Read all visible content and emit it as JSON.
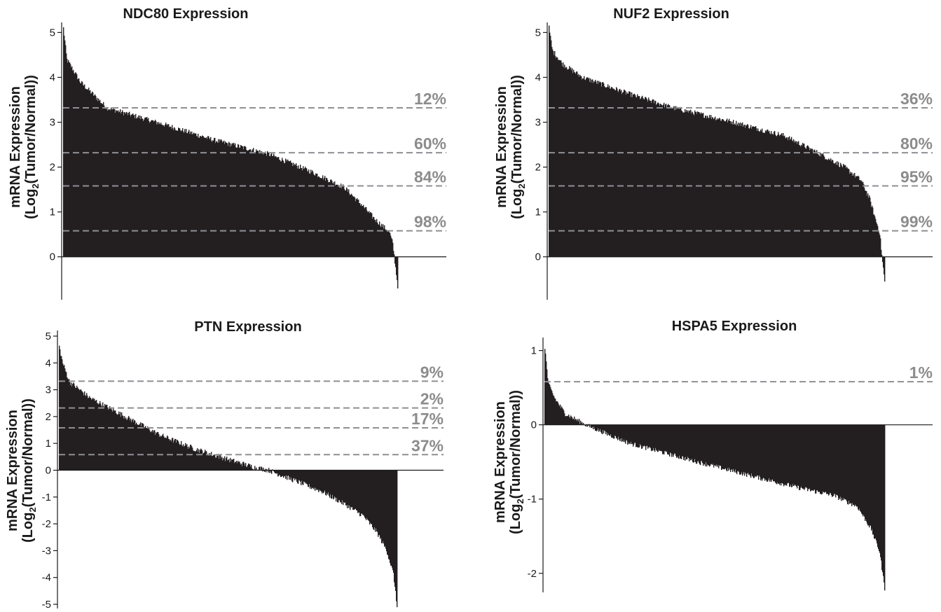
{
  "chart_data": [
    {
      "type": "bar",
      "title": "NDC80 Expression",
      "ylabel": "mRNA Expression",
      "ylabel_line2_prefix": "(Log",
      "ylabel_line2_sub": "2",
      "ylabel_line2_suffix": "(Tumor/Normal))",
      "ylim": [
        -0.8,
        5.1
      ],
      "yticks": [
        0,
        1,
        2,
        3,
        4,
        5
      ],
      "sorted_descending": true,
      "profile": [
        [
          0,
          5.1
        ],
        [
          0.01,
          4.4
        ],
        [
          0.05,
          3.9
        ],
        [
          0.13,
          3.32
        ],
        [
          0.3,
          2.95
        ],
        [
          0.45,
          2.6
        ],
        [
          0.61,
          2.3
        ],
        [
          0.74,
          1.9
        ],
        [
          0.84,
          1.55
        ],
        [
          0.9,
          1.1
        ],
        [
          0.93,
          0.85
        ],
        [
          0.975,
          0.55
        ],
        [
          0.985,
          0.3
        ],
        [
          0.99,
          0.0
        ],
        [
          1,
          -0.65
        ]
      ],
      "thresholds": [
        {
          "value": 3.32,
          "percent": "12%"
        },
        {
          "value": 2.32,
          "percent": "60%"
        },
        {
          "value": 1.58,
          "percent": "84%"
        },
        {
          "value": 0.58,
          "percent": "98%"
        }
      ]
    },
    {
      "type": "bar",
      "title": "NUF2 Expression",
      "ylabel": "mRNA Expression",
      "ylabel_line2_prefix": "(Log",
      "ylabel_line2_sub": "2",
      "ylabel_line2_suffix": "(Tumor/Normal))",
      "ylim": [
        -0.8,
        5.1
      ],
      "yticks": [
        0,
        1,
        2,
        3,
        4,
        5
      ],
      "sorted_descending": true,
      "profile": [
        [
          0,
          5.1
        ],
        [
          0.01,
          4.6
        ],
        [
          0.04,
          4.3
        ],
        [
          0.1,
          4.0
        ],
        [
          0.25,
          3.6
        ],
        [
          0.37,
          3.32
        ],
        [
          0.55,
          3.0
        ],
        [
          0.7,
          2.7
        ],
        [
          0.8,
          2.32
        ],
        [
          0.88,
          2.0
        ],
        [
          0.93,
          1.7
        ],
        [
          0.955,
          1.3
        ],
        [
          0.97,
          0.9
        ],
        [
          0.985,
          0.55
        ],
        [
          0.992,
          0.0
        ],
        [
          1,
          -0.55
        ]
      ],
      "thresholds": [
        {
          "value": 3.32,
          "percent": "36%"
        },
        {
          "value": 2.32,
          "percent": "80%"
        },
        {
          "value": 1.58,
          "percent": "95%"
        },
        {
          "value": 0.58,
          "percent": "99%"
        }
      ]
    },
    {
      "type": "bar",
      "title": "PTN Expression",
      "ylabel": "mRNA Expression",
      "ylabel_line2_prefix": "(Log",
      "ylabel_line2_sub": "2",
      "ylabel_line2_suffix": "(Tumor/Normal))",
      "ylim": [
        -5,
        5
      ],
      "yticks": [
        -5,
        -4,
        -3,
        -2,
        -1,
        0,
        1,
        2,
        3,
        4,
        5
      ],
      "sorted_descending": true,
      "profile": [
        [
          0,
          4.6
        ],
        [
          0.01,
          4.0
        ],
        [
          0.03,
          3.3
        ],
        [
          0.09,
          2.7
        ],
        [
          0.18,
          2.1
        ],
        [
          0.3,
          1.3
        ],
        [
          0.4,
          0.8
        ],
        [
          0.5,
          0.4
        ],
        [
          0.58,
          0.1
        ],
        [
          0.62,
          0.0
        ],
        [
          0.7,
          -0.4
        ],
        [
          0.78,
          -0.8
        ],
        [
          0.85,
          -1.3
        ],
        [
          0.9,
          -1.7
        ],
        [
          0.94,
          -2.3
        ],
        [
          0.97,
          -3.0
        ],
        [
          0.99,
          -3.9
        ],
        [
          1,
          -5.1
        ]
      ],
      "thresholds": [
        {
          "value": 3.32,
          "percent": "9%"
        },
        {
          "value": 2.32,
          "percent": "2%"
        },
        {
          "value": 1.58,
          "percent": "17%"
        },
        {
          "value": 0.58,
          "percent": "37%"
        }
      ]
    },
    {
      "type": "bar",
      "title": "HSPA5 Expression",
      "ylabel": "mRNA Expression",
      "ylabel_line2_prefix": "(Log",
      "ylabel_line2_sub": "2",
      "ylabel_line2_suffix": "(Tumor/Normal))",
      "ylim": [
        -2.2,
        1.1
      ],
      "yticks": [
        -2,
        -1,
        0,
        1
      ],
      "sorted_descending": true,
      "profile": [
        [
          0,
          1.05
        ],
        [
          0.01,
          0.55
        ],
        [
          0.03,
          0.35
        ],
        [
          0.06,
          0.15
        ],
        [
          0.12,
          0.0
        ],
        [
          0.25,
          -0.25
        ],
        [
          0.45,
          -0.5
        ],
        [
          0.62,
          -0.7
        ],
        [
          0.75,
          -0.85
        ],
        [
          0.85,
          -0.95
        ],
        [
          0.92,
          -1.1
        ],
        [
          0.96,
          -1.4
        ],
        [
          0.985,
          -1.7
        ],
        [
          1,
          -2.2
        ]
      ],
      "thresholds": [
        {
          "value": 0.58,
          "percent": "1%"
        }
      ]
    }
  ]
}
